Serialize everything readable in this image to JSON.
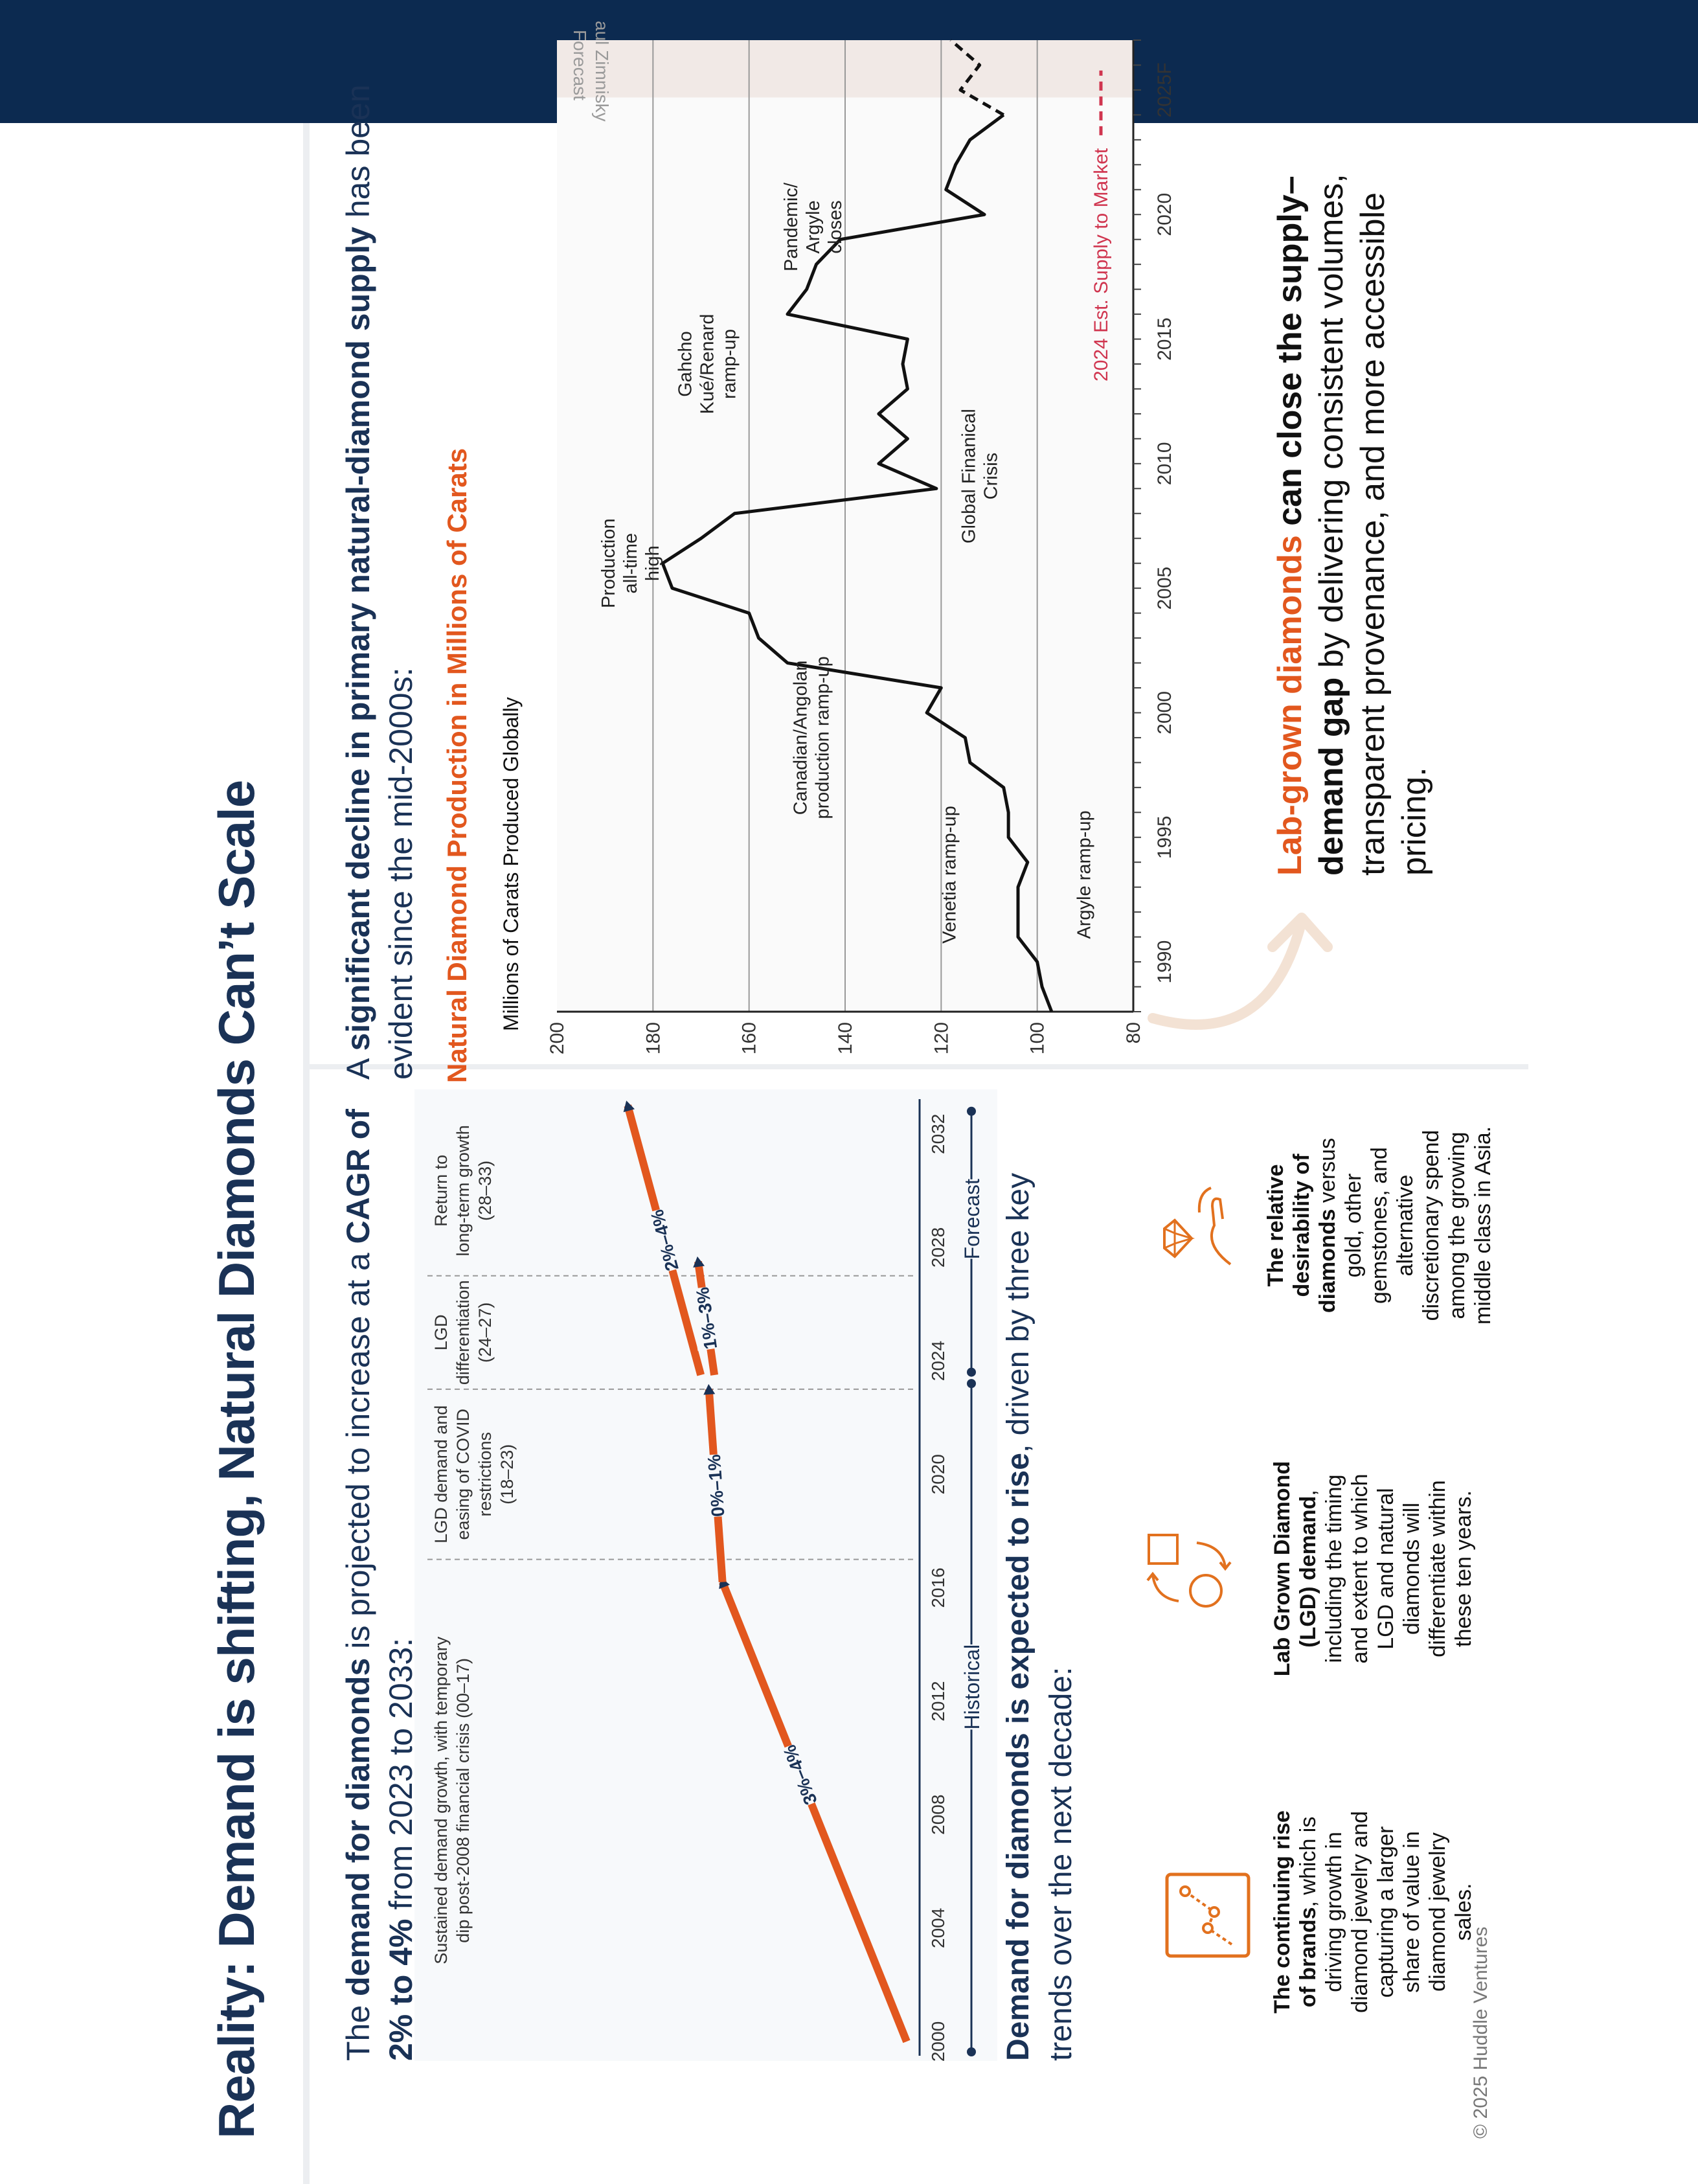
{
  "page": {
    "title": "Reality: Demand is shifting, Natural Diamonds Can’t Scale",
    "copyright": "© 2025 Huddle Ventures"
  },
  "left_panel": {
    "lead_prefix": "The ",
    "lead_bold1": "demand for diamonds",
    "lead_mid": "  is projected to increase at a ",
    "lead_bold2": "CAGR of 2% to 4%",
    "lead_suffix": " from 2023 to 2033:",
    "subhead_bold": "Demand for diamonds is expected to rise",
    "subhead_rest": ", driven by three key trends over the next decade:"
  },
  "demand_chart": {
    "chart_data": {
      "type": "line",
      "x_ticks": [
        "2000",
        "2004",
        "2008",
        "2012",
        "2016",
        "2020",
        "2024",
        "2028",
        "2032"
      ],
      "xlim": [
        2000,
        2033
      ],
      "phases": [
        {
          "label": "Sustained demand growth, with temporary dip post-2008 financial crisis (00–17)",
          "range": [
            2000,
            2017
          ]
        },
        {
          "label": "LGD demand and easing of COVID restrictions (18–23)",
          "range": [
            2017,
            2023
          ]
        },
        {
          "label": "LGD differentiation (24–27)",
          "range": [
            2023,
            2027
          ]
        },
        {
          "label": "Return to long-term growth (28–33)",
          "range": [
            2027,
            2033
          ]
        }
      ],
      "segments": [
        {
          "label": "3%–4%",
          "x": [
            2000,
            2016.2
          ],
          "y": [
            0,
            68
          ]
        },
        {
          "label": "0%–1%",
          "x": [
            2016.2,
            2023
          ],
          "y": [
            68,
            73
          ]
        },
        {
          "label": "2%–4%",
          "x": [
            2023.5,
            2033
          ],
          "y": [
            76,
            103
          ]
        },
        {
          "label": "1%–3%",
          "x": [
            2023.5,
            2027.5
          ],
          "y": [
            71,
            77
          ]
        }
      ],
      "period_labels": {
        "historical": "Historical",
        "forecast": "Forecast"
      }
    }
  },
  "trends": [
    {
      "icon": "brand-growth-chart-icon",
      "bold": "The continuing rise of brands",
      "rest": ", which is driving growth in diamond jewelry and capturing a larger share of value in diamond jewelry sales."
    },
    {
      "icon": "lgd-shapes-cycle-icon",
      "bold": "Lab Grown Diamond (LGD) demand",
      "rest": ", including the timing and extent to which LGD and natural diamonds will differentiate within these ten years."
    },
    {
      "icon": "hand-diamond-icon",
      "bold": "The relative desirability of diamonds",
      "rest": " versus gold, other gemstones, and alternative discretionary spend among the growing middle class in Asia."
    }
  ],
  "right_panel": {
    "lead_prefix": "A ",
    "lead_bold": "significant decline in primary natural-diamond supply",
    "lead_suffix": " has been evident since the mid-2000s:",
    "cta_orange": "Lab-grown diamonds",
    "cta_bold": " can close the supply–demand gap",
    "cta_rest": " by delivering consistent volumes, transparent provenance, and more accessible pricing."
  },
  "supply_chart": {
    "chart_data": {
      "type": "line",
      "title": "Natural Diamond Production in Millions of Carats",
      "ylabel": "Millions of Carats Produced Globally",
      "ylim": [
        80,
        200
      ],
      "y_ticks": [
        "80",
        "100",
        "120",
        "140",
        "160",
        "180",
        "200"
      ],
      "xlim": [
        1988,
        2027
      ],
      "x_ticks": [
        "1990",
        "1995",
        "2000",
        "2005",
        "2010",
        "2015",
        "2020",
        "2025F"
      ],
      "series": [
        {
          "x": [
            1988,
            1989,
            1990,
            1991,
            1992,
            1993,
            1994,
            1995,
            1996,
            1997,
            1998,
            1999,
            2000,
            2001,
            2002,
            2003,
            2004,
            2005,
            2006,
            2007,
            2008,
            2009,
            2010,
            2011,
            2012,
            2013,
            2014,
            2015,
            2016,
            2017,
            2018,
            2019,
            2020,
            2021,
            2022,
            2023,
            2024
          ],
          "y": [
            97,
            99,
            100,
            104,
            104,
            104,
            102,
            106,
            106,
            107,
            114,
            115,
            123,
            120,
            152,
            158,
            160,
            176,
            178,
            170,
            163,
            121,
            133,
            127,
            133,
            127,
            128,
            127,
            152,
            148,
            146,
            141,
            111,
            119,
            117,
            114,
            107
          ]
        },
        {
          "x": [
            2024,
            2025,
            2026,
            2027
          ],
          "y": [
            107,
            116,
            112,
            118
          ],
          "style": "dashed"
        }
      ],
      "forecast_label": "Paul Zimnisky Forecast",
      "annotations": [
        "Argyle ramp-up",
        "Venetia ramp-up",
        "Canadian/Angolan production ramp-up",
        "Production all-time high",
        "Global Finanical Crisis",
        "Gahcho Kué/Renard ramp-up",
        "Pandemic/ Argyle closes"
      ],
      "legend": "2024 Est. Supply to Market",
      "legend_color": "#d0354f"
    }
  },
  "colors": {
    "navy": "#0c2a50",
    "orange": "#e2571e",
    "title": "#1a3256"
  }
}
